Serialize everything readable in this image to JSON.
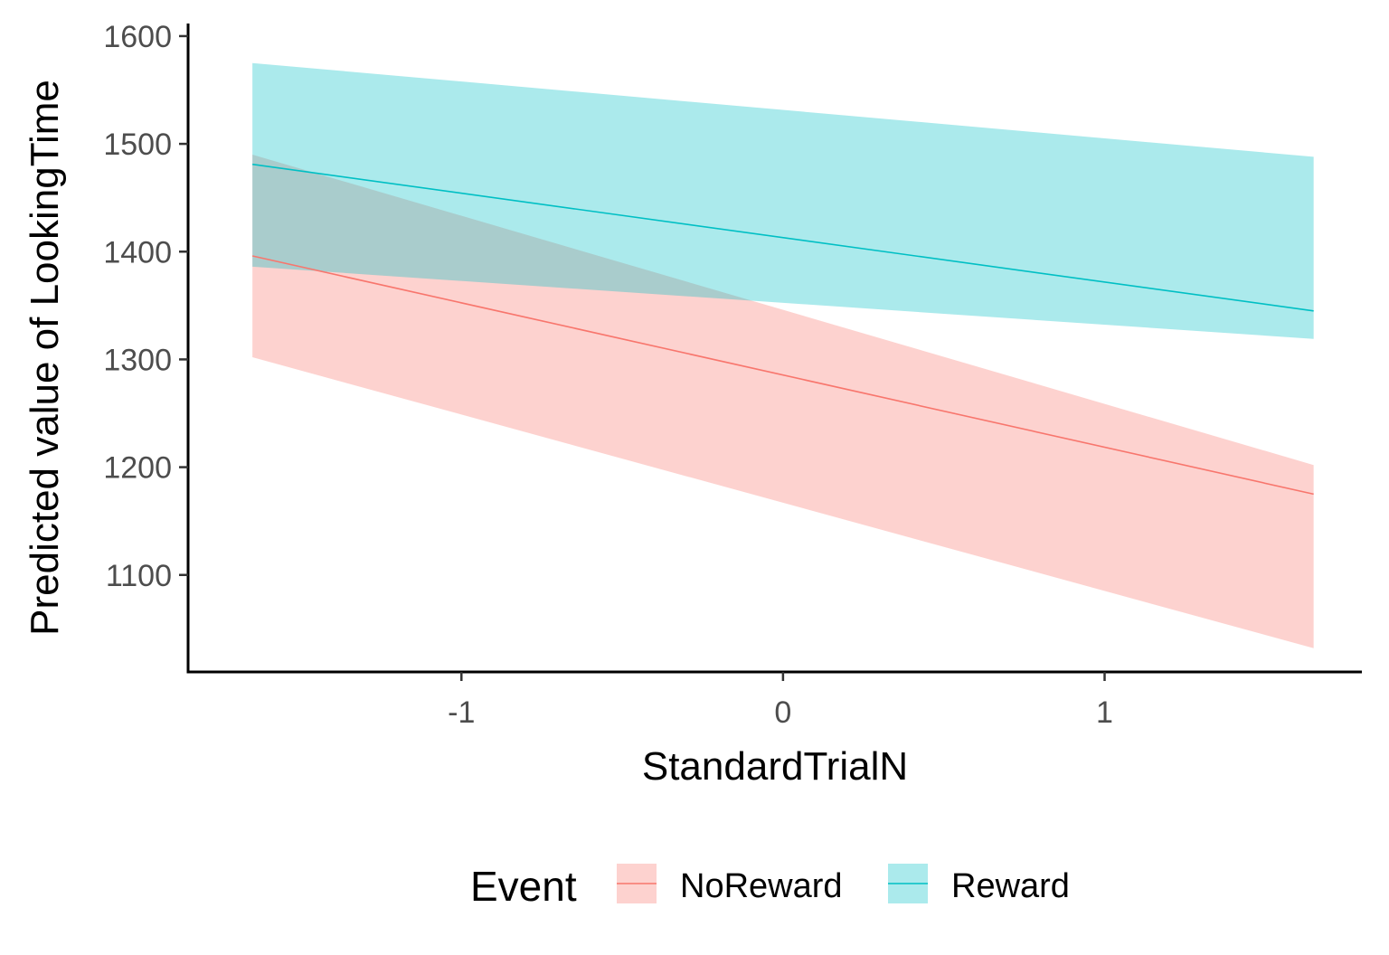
{
  "chart_data": {
    "type": "line",
    "title": "",
    "xlabel": "StandardTrialN",
    "ylabel": "Predicted value of LookingTime",
    "xlim": [
      -1.85,
      1.8
    ],
    "ylim": [
      1010,
      1610
    ],
    "x_ticks": [
      -1,
      0,
      1
    ],
    "y_ticks": [
      1100,
      1200,
      1300,
      1400,
      1500,
      1600
    ],
    "grid": false,
    "legend": {
      "title": "Event",
      "placement": "bottom",
      "entries": [
        "NoReward",
        "Reward"
      ]
    },
    "x": [
      -1.65,
      1.65
    ],
    "series": [
      {
        "name": "NoReward",
        "color": "#F8766D",
        "fill": "#F8766D",
        "values": [
          1396,
          1175
        ],
        "lower": [
          1302,
          1032
        ],
        "upper": [
          1490,
          1202
        ]
      },
      {
        "name": "Reward",
        "color": "#00BFC4",
        "fill": "#00BFC4",
        "values": [
          1481,
          1345
        ],
        "lower": [
          1386,
          1319
        ],
        "upper": [
          1575,
          1488
        ]
      }
    ]
  }
}
